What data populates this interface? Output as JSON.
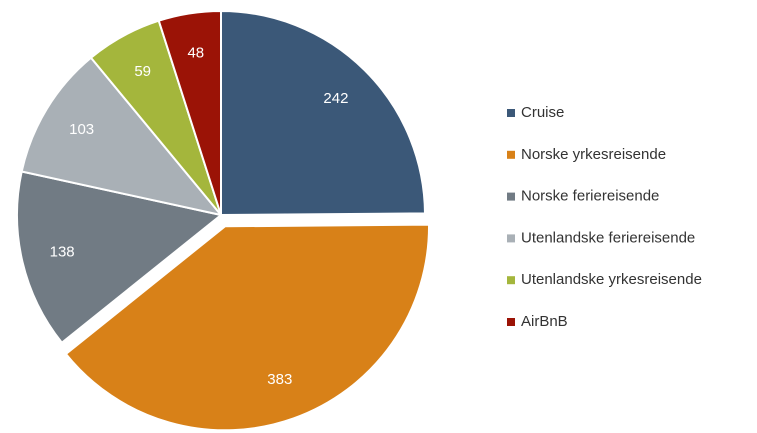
{
  "chart_data": {
    "type": "pie",
    "categories": [
      "Cruise",
      "Norske yrkesreisende",
      "Norske feriereisende",
      "Utenlandske feriereisende",
      "Utenlandske yrkesreisende",
      "AirBnB"
    ],
    "values": [
      242,
      383,
      138,
      103,
      59,
      48
    ],
    "colors": [
      "#3b5878",
      "#d88118",
      "#717b84",
      "#a9b0b6",
      "#a4b63c",
      "#9b1306"
    ],
    "exploded": [
      false,
      true,
      false,
      false,
      false,
      false
    ],
    "legend": "right"
  }
}
